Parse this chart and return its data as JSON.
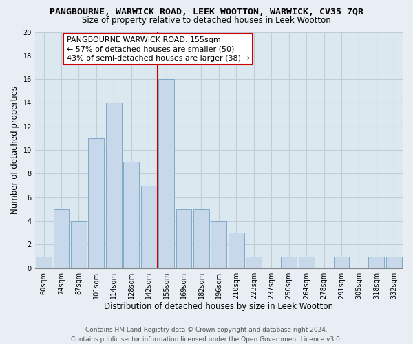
{
  "title": "PANGBOURNE, WARWICK ROAD, LEEK WOOTTON, WARWICK, CV35 7QR",
  "subtitle": "Size of property relative to detached houses in Leek Wootton",
  "xlabel": "Distribution of detached houses by size in Leek Wootton",
  "ylabel": "Number of detached properties",
  "bin_labels": [
    "60sqm",
    "74sqm",
    "87sqm",
    "101sqm",
    "114sqm",
    "128sqm",
    "142sqm",
    "155sqm",
    "169sqm",
    "182sqm",
    "196sqm",
    "210sqm",
    "223sqm",
    "237sqm",
    "250sqm",
    "264sqm",
    "278sqm",
    "291sqm",
    "305sqm",
    "318sqm",
    "332sqm"
  ],
  "bar_values": [
    1,
    5,
    4,
    11,
    14,
    9,
    7,
    16,
    5,
    5,
    4,
    3,
    1,
    0,
    1,
    1,
    0,
    1,
    0,
    1,
    1
  ],
  "bar_color": "#c8d8eb",
  "bar_edgecolor": "#7faac8",
  "vline_x": 7,
  "vline_color": "#cc0000",
  "annotation_title": "PANGBOURNE WARWICK ROAD: 155sqm",
  "annotation_line1": "← 57% of detached houses are smaller (50)",
  "annotation_line2": "43% of semi-detached houses are larger (38) →",
  "annotation_box_color": "#ffffff",
  "annotation_box_edgecolor": "#cc0000",
  "ylim": [
    0,
    20
  ],
  "yticks": [
    0,
    2,
    4,
    6,
    8,
    10,
    12,
    14,
    16,
    18,
    20
  ],
  "footer_line1": "Contains HM Land Registry data © Crown copyright and database right 2024.",
  "footer_line2": "Contains public sector information licensed under the Open Government Licence v3.0.",
  "bg_color": "#e8eef4",
  "plot_bg_color": "#dce8f0",
  "grid_color": "#c0ccd8",
  "title_fontsize": 9.5,
  "subtitle_fontsize": 8.5,
  "axis_label_fontsize": 8.5,
  "tick_fontsize": 7,
  "annotation_fontsize": 8,
  "footer_fontsize": 6.5
}
